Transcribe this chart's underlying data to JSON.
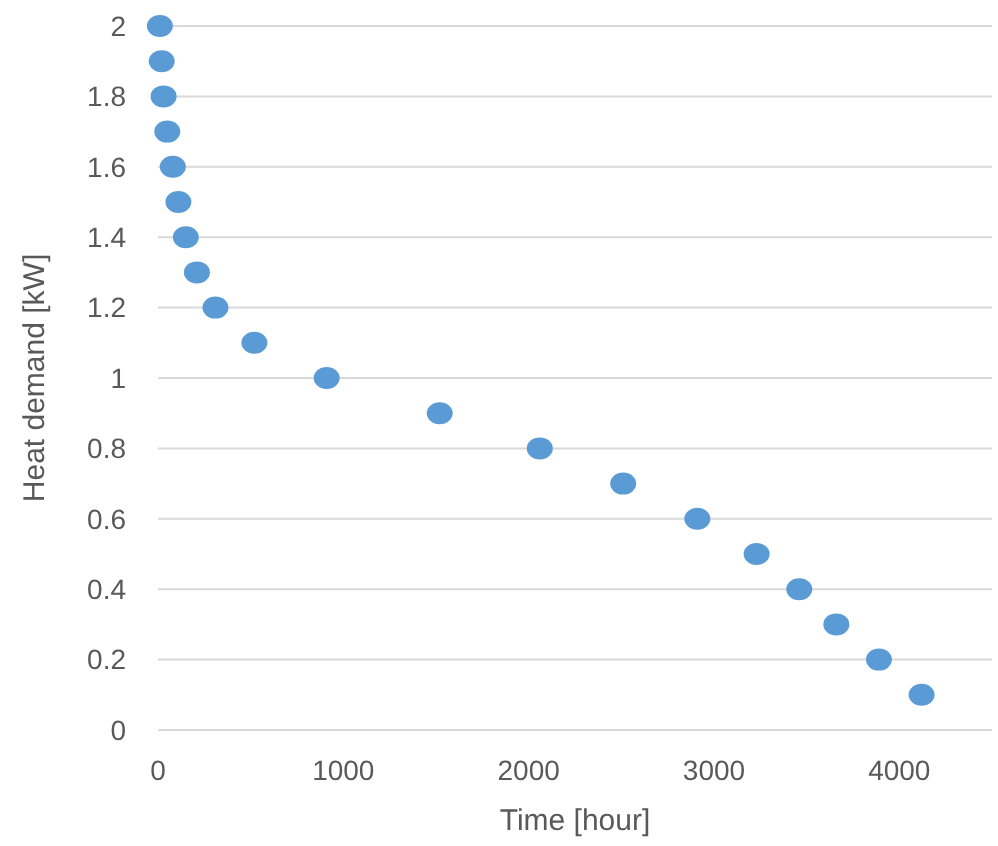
{
  "chart_data": {
    "type": "scatter",
    "xlabel": "Time [hour]",
    "ylabel": "Heat demand [kW]",
    "x": [
      10,
      20,
      30,
      50,
      80,
      110,
      150,
      210,
      310,
      520,
      910,
      1520,
      2060,
      2510,
      2910,
      3230,
      3460,
      3660,
      3890,
      4120
    ],
    "values": [
      2,
      1.9,
      1.8,
      1.7,
      1.6,
      1.5,
      1.4,
      1.3,
      1.2,
      1.1,
      1,
      0.9,
      0.8,
      0.7,
      0.6,
      0.5,
      0.4,
      0.3,
      0.2,
      0.1
    ],
    "color": "#5b9bd5",
    "marker": "circle",
    "xlim": [
      0,
      4500
    ],
    "xticks": [
      0,
      1000,
      2000,
      3000,
      4000
    ],
    "ylim": [
      0,
      2
    ],
    "yticks": [
      0,
      0.2,
      0.4,
      0.6,
      0.8,
      1,
      1.2,
      1.4,
      1.6,
      1.8,
      2
    ],
    "grid": "y"
  }
}
